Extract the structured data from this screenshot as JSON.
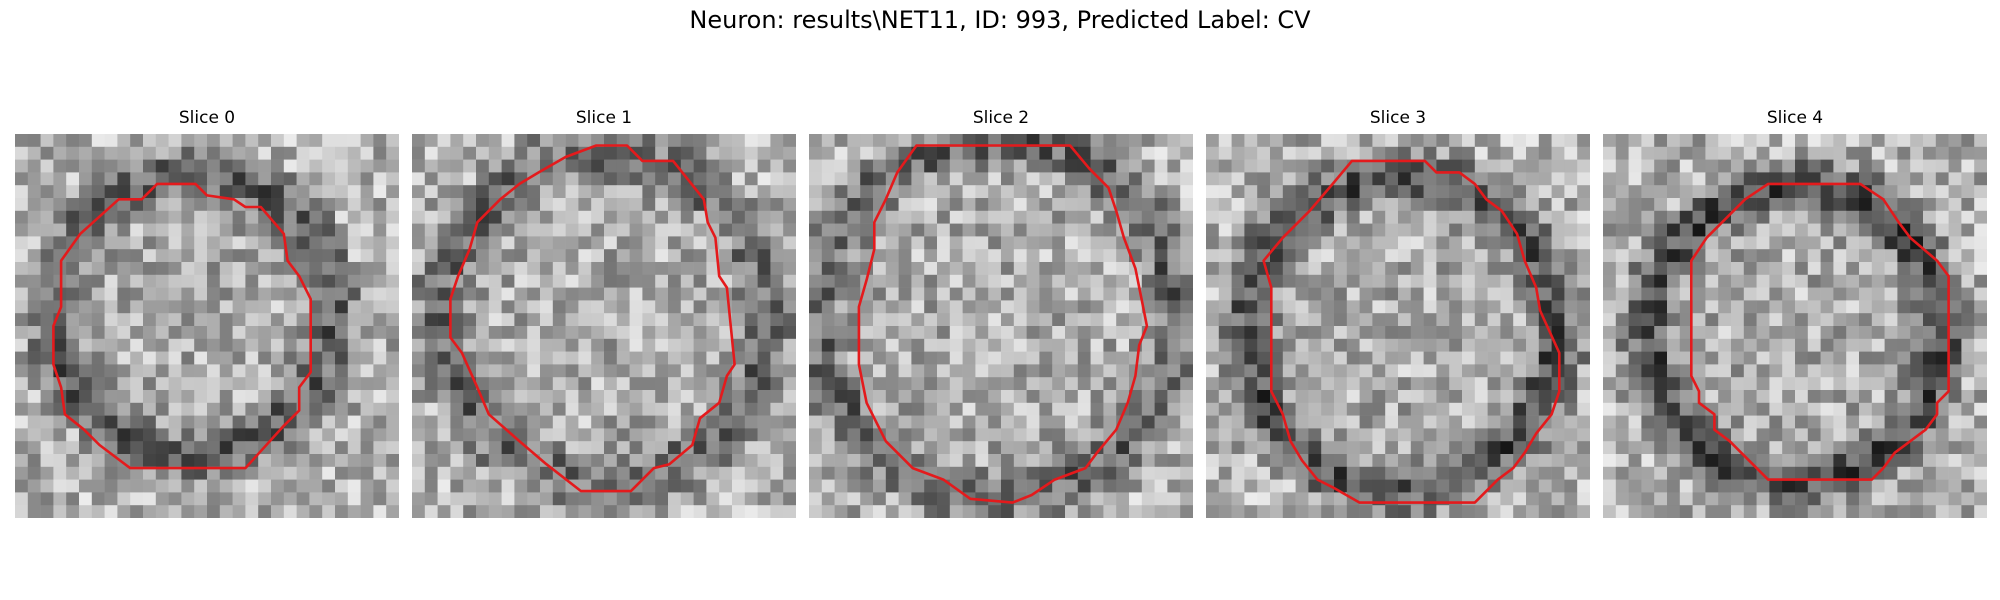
{
  "figure": {
    "title": "Neuron: results\\NET11, ID: 993, Predicted Label: CV"
  },
  "panels": [
    {
      "title": "Slice 0"
    },
    {
      "title": "Slice 1"
    },
    {
      "title": "Slice 2"
    },
    {
      "title": "Slice 3"
    },
    {
      "title": "Slice 4"
    }
  ],
  "colors": {
    "contour": "#e41a1c"
  },
  "image_grid": {
    "cells_per_side": 30
  }
}
